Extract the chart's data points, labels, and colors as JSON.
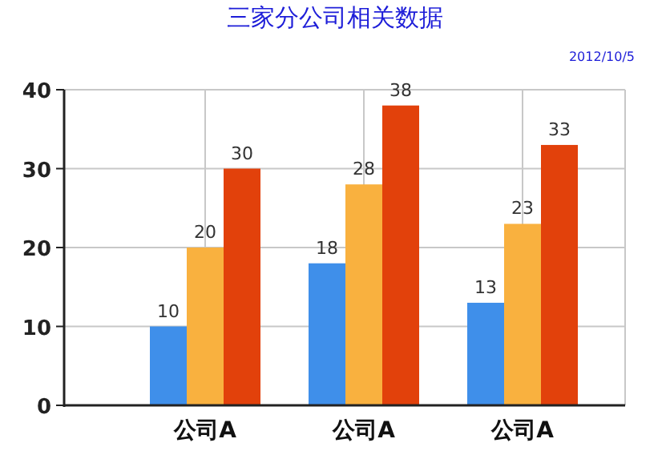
{
  "chart_data": {
    "type": "bar",
    "title": "三家分公司相关数据",
    "subtitle": "2012/10/5",
    "categories": [
      "公司A",
      "公司A",
      "公司A"
    ],
    "series": [
      {
        "color": "#3f8fea",
        "values": [
          10,
          18,
          13
        ]
      },
      {
        "color": "#f9b13f",
        "values": [
          20,
          28,
          23
        ]
      },
      {
        "color": "#e2410b",
        "values": [
          30,
          38,
          33
        ]
      }
    ],
    "ylim": [
      0,
      40
    ],
    "yticks": [
      0,
      10,
      20,
      30,
      40
    ],
    "grid": true,
    "data_labels": true
  }
}
